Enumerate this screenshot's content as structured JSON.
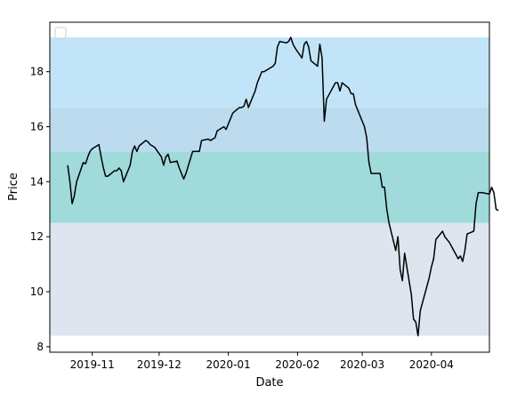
{
  "chart_data": {
    "type": "line",
    "xlabel": "Date",
    "ylabel": "Price",
    "xlim": [
      "2019-10-13",
      "2020-04-27"
    ],
    "ylim": [
      7.8,
      19.8
    ],
    "x_ticks": [
      {
        "date": "2019-11-01",
        "label": "2019-11"
      },
      {
        "date": "2019-12-01",
        "label": "2019-12"
      },
      {
        "date": "2020-01-01",
        "label": "2020-01"
      },
      {
        "date": "2020-02-01",
        "label": "2020-02"
      },
      {
        "date": "2020-03-01",
        "label": "2020-03"
      },
      {
        "date": "2020-04-01",
        "label": "2020-04"
      }
    ],
    "y_ticks": [
      8,
      10,
      12,
      14,
      16,
      18
    ],
    "grid": false,
    "legend": {
      "placement": "top-left",
      "entries": []
    },
    "bands": [
      {
        "y0": 8.4,
        "y1": 12.5,
        "color": "#dfe5ef"
      },
      {
        "y0": 12.5,
        "y1": 15.1,
        "color": "#a0dadb"
      },
      {
        "y0": 15.1,
        "y1": 16.7,
        "color": "#bddbee"
      },
      {
        "y0": 16.7,
        "y1": 19.25,
        "color": "#c2e4f8"
      }
    ],
    "series": [
      {
        "color": "#000000",
        "points": [
          [
            "2019-10-21",
            14.6
          ],
          [
            "2019-10-22",
            14.0
          ],
          [
            "2019-10-23",
            13.2
          ],
          [
            "2019-10-24",
            13.5
          ],
          [
            "2019-10-25",
            14.0
          ],
          [
            "2019-10-28",
            14.7
          ],
          [
            "2019-10-29",
            14.65
          ],
          [
            "2019-10-30",
            14.9
          ],
          [
            "2019-10-31",
            15.1
          ],
          [
            "2019-11-01",
            15.2
          ],
          [
            "2019-11-04",
            15.35
          ],
          [
            "2019-11-05",
            14.9
          ],
          [
            "2019-11-06",
            14.5
          ],
          [
            "2019-11-07",
            14.2
          ],
          [
            "2019-11-08",
            14.2
          ],
          [
            "2019-11-11",
            14.4
          ],
          [
            "2019-11-12",
            14.4
          ],
          [
            "2019-11-13",
            14.5
          ],
          [
            "2019-11-14",
            14.4
          ],
          [
            "2019-11-15",
            14.0
          ],
          [
            "2019-11-18",
            14.6
          ],
          [
            "2019-11-19",
            15.1
          ],
          [
            "2019-11-20",
            15.3
          ],
          [
            "2019-11-21",
            15.1
          ],
          [
            "2019-11-22",
            15.3
          ],
          [
            "2019-11-25",
            15.5
          ],
          [
            "2019-11-26",
            15.45
          ],
          [
            "2019-11-27",
            15.35
          ],
          [
            "2019-11-29",
            15.25
          ],
          [
            "2019-12-02",
            14.9
          ],
          [
            "2019-12-03",
            14.6
          ],
          [
            "2019-12-04",
            14.9
          ],
          [
            "2019-12-05",
            15.0
          ],
          [
            "2019-12-06",
            14.7
          ],
          [
            "2019-12-09",
            14.75
          ],
          [
            "2019-12-10",
            14.5
          ],
          [
            "2019-12-11",
            14.3
          ],
          [
            "2019-12-12",
            14.1
          ],
          [
            "2019-12-13",
            14.3
          ],
          [
            "2019-12-16",
            15.1
          ],
          [
            "2019-12-17",
            15.1
          ],
          [
            "2019-12-18",
            15.1
          ],
          [
            "2019-12-19",
            15.1
          ],
          [
            "2019-12-20",
            15.5
          ],
          [
            "2019-12-23",
            15.55
          ],
          [
            "2019-12-24",
            15.5
          ],
          [
            "2019-12-26",
            15.6
          ],
          [
            "2019-12-27",
            15.85
          ],
          [
            "2019-12-30",
            16.0
          ],
          [
            "2019-12-31",
            15.9
          ],
          [
            "2020-01-02",
            16.3
          ],
          [
            "2020-01-03",
            16.5
          ],
          [
            "2020-01-06",
            16.7
          ],
          [
            "2020-01-07",
            16.7
          ],
          [
            "2020-01-08",
            16.75
          ],
          [
            "2020-01-09",
            17.0
          ],
          [
            "2020-01-10",
            16.7
          ],
          [
            "2020-01-13",
            17.3
          ],
          [
            "2020-01-14",
            17.6
          ],
          [
            "2020-01-15",
            17.8
          ],
          [
            "2020-01-16",
            18.0
          ],
          [
            "2020-01-17",
            18.0
          ],
          [
            "2020-01-21",
            18.2
          ],
          [
            "2020-01-22",
            18.3
          ],
          [
            "2020-01-23",
            18.9
          ],
          [
            "2020-01-24",
            19.1
          ],
          [
            "2020-01-27",
            19.05
          ],
          [
            "2020-01-28",
            19.1
          ],
          [
            "2020-01-29",
            19.25
          ],
          [
            "2020-01-30",
            19.0
          ],
          [
            "2020-01-31",
            18.85
          ],
          [
            "2020-02-03",
            18.5
          ],
          [
            "2020-02-04",
            19.0
          ],
          [
            "2020-02-05",
            19.1
          ],
          [
            "2020-02-06",
            18.9
          ],
          [
            "2020-02-07",
            18.4
          ],
          [
            "2020-02-10",
            18.2
          ],
          [
            "2020-02-11",
            19.0
          ],
          [
            "2020-02-12",
            18.5
          ],
          [
            "2020-02-13",
            16.2
          ],
          [
            "2020-02-14",
            17.0
          ],
          [
            "2020-02-18",
            17.6
          ],
          [
            "2020-02-19",
            17.6
          ],
          [
            "2020-02-20",
            17.3
          ],
          [
            "2020-02-21",
            17.6
          ],
          [
            "2020-02-24",
            17.4
          ],
          [
            "2020-02-25",
            17.2
          ],
          [
            "2020-02-26",
            17.2
          ],
          [
            "2020-02-27",
            16.8
          ],
          [
            "2020-02-28",
            16.6
          ],
          [
            "2020-03-02",
            16.0
          ],
          [
            "2020-03-03",
            15.6
          ],
          [
            "2020-03-04",
            14.7
          ],
          [
            "2020-03-05",
            14.3
          ],
          [
            "2020-03-06",
            14.3
          ],
          [
            "2020-03-09",
            14.3
          ],
          [
            "2020-03-10",
            13.8
          ],
          [
            "2020-03-11",
            13.8
          ],
          [
            "2020-03-12",
            13.0
          ],
          [
            "2020-03-13",
            12.5
          ],
          [
            "2020-03-16",
            11.5
          ],
          [
            "2020-03-17",
            12.0
          ],
          [
            "2020-03-18",
            10.8
          ],
          [
            "2020-03-19",
            10.4
          ],
          [
            "2020-03-20",
            11.4
          ],
          [
            "2020-03-23",
            9.9
          ],
          [
            "2020-03-24",
            9.0
          ],
          [
            "2020-03-25",
            8.9
          ],
          [
            "2020-03-26",
            8.4
          ],
          [
            "2020-03-27",
            9.3
          ],
          [
            "2020-03-30",
            10.2
          ],
          [
            "2020-03-31",
            10.5
          ],
          [
            "2020-04-01",
            10.9
          ],
          [
            "2020-04-02",
            11.2
          ],
          [
            "2020-04-03",
            11.9
          ],
          [
            "2020-04-06",
            12.2
          ],
          [
            "2020-04-07",
            12.0
          ],
          [
            "2020-04-08",
            11.9
          ],
          [
            "2020-04-09",
            11.8
          ],
          [
            "2020-04-13",
            11.2
          ],
          [
            "2020-04-14",
            11.3
          ],
          [
            "2020-04-15",
            11.1
          ],
          [
            "2020-04-16",
            11.5
          ],
          [
            "2020-04-17",
            12.1
          ],
          [
            "2020-04-20",
            12.2
          ],
          [
            "2020-04-21",
            13.2
          ],
          [
            "2020-04-22",
            13.6
          ],
          [
            "2020-04-23",
            13.6
          ],
          [
            "2020-04-24",
            13.6
          ],
          [
            "2020-04-27",
            13.55
          ],
          [
            "2020-04-28",
            13.8
          ],
          [
            "2020-04-29",
            13.6
          ],
          [
            "2020-04-30",
            13.0
          ],
          [
            "2020-05-01",
            12.95
          ]
        ]
      }
    ]
  }
}
